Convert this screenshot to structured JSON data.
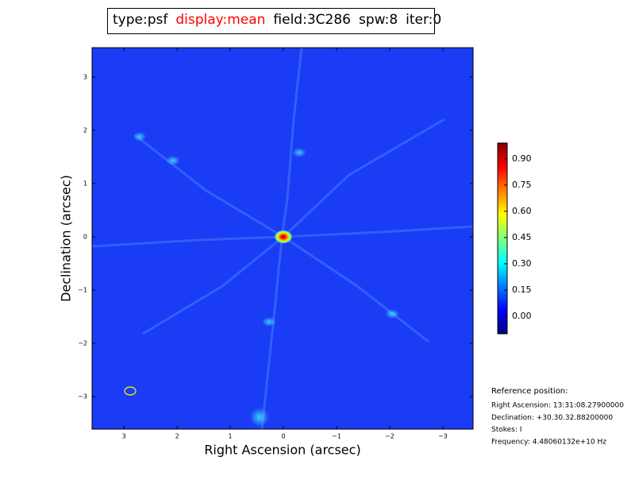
{
  "chart_data": {
    "type": "image",
    "title_parts": [
      {
        "text": "type:psf",
        "color": "#000000"
      },
      {
        "text": "display:mean",
        "color": "#ff0000"
      },
      {
        "text": "field:3C286",
        "color": "#000000"
      },
      {
        "text": "spw:8",
        "color": "#000000"
      },
      {
        "text": "iter:0",
        "color": "#000000"
      }
    ],
    "x_label": "Right Ascension (arcsec)",
    "y_label": "Declination (arcsec)",
    "xlim": [
      3.6,
      -3.57
    ],
    "ylim": [
      -3.61,
      3.55
    ],
    "xticks": [
      3,
      2,
      1,
      0,
      {
        "value": -1,
        "label": "−1"
      },
      {
        "value": -2,
        "label": "−2"
      },
      {
        "value": -3,
        "label": "−3"
      }
    ],
    "yticks": [
      {
        "value": -3,
        "label": "−3"
      },
      {
        "value": -2,
        "label": "−2"
      },
      {
        "value": -1,
        "label": "−1"
      },
      0,
      1,
      2,
      3
    ],
    "colormap": "jet",
    "clim": [
      -0.1,
      0.99
    ],
    "cticks": [
      {
        "value": 0,
        "label": "0.00"
      },
      {
        "value": 0.15,
        "label": "0.15"
      },
      {
        "value": 0.3,
        "label": "0.30"
      },
      {
        "value": 0.45,
        "label": "0.45"
      },
      {
        "value": 0.6,
        "label": "0.60"
      },
      {
        "value": 0.75,
        "label": "0.75"
      },
      {
        "value": 0.9,
        "label": "0.90"
      }
    ],
    "reference": {
      "title": "Reference position:",
      "lines": [
        "Right Ascension: 13:31:08.27900000",
        "Declination: +30.30.32.88200000",
        "Stokes: I",
        "Frequency: 4.48060132e+10 Hz"
      ]
    }
  }
}
